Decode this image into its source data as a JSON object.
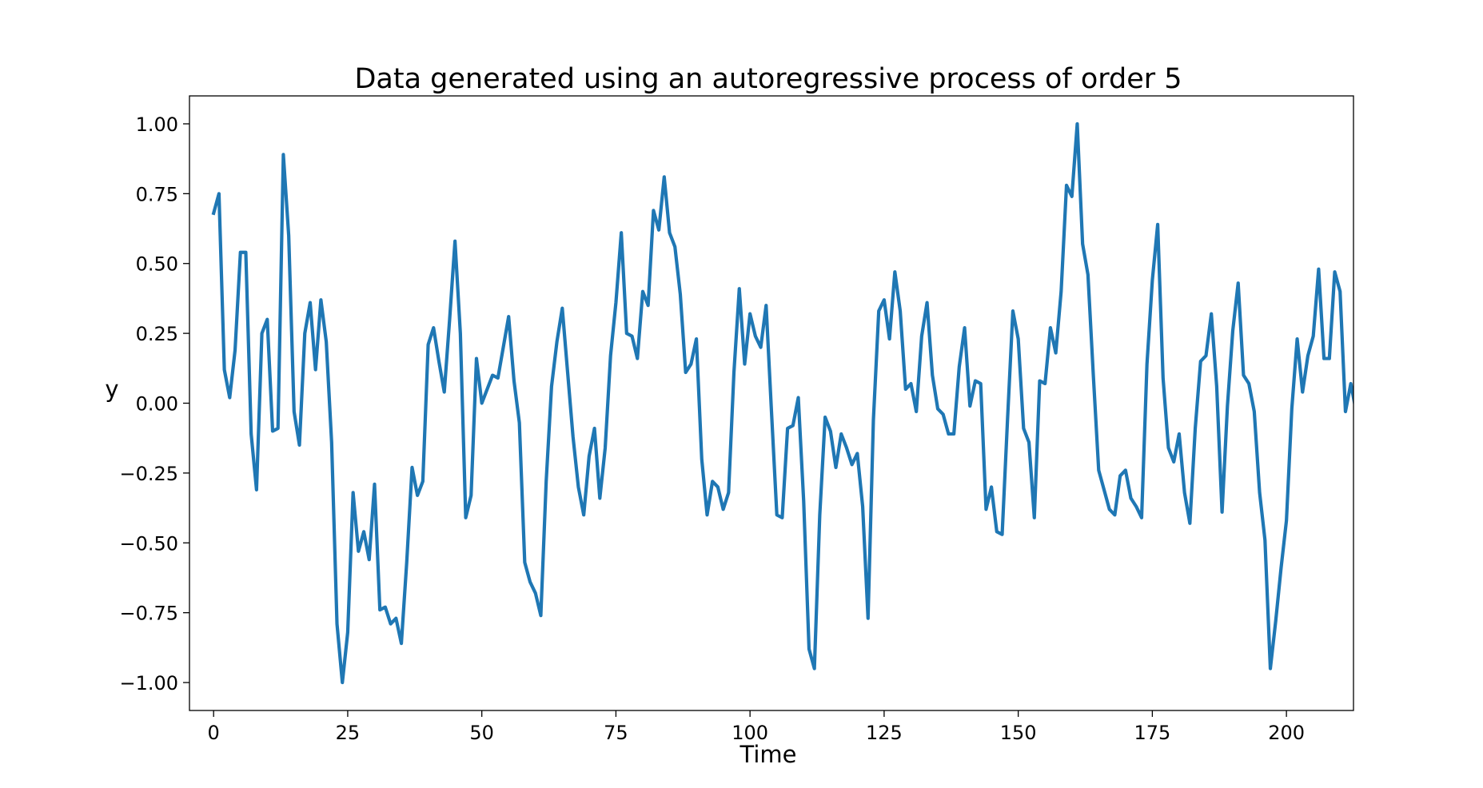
{
  "chart_data": {
    "type": "line",
    "title": "Data generated using an autoregressive process of order 5",
    "xlabel": "Time",
    "ylabel": "y",
    "xlim": [
      -4.5,
      212.5
    ],
    "ylim": [
      -1.1,
      1.1
    ],
    "xticks": [
      0,
      25,
      50,
      75,
      100,
      125,
      150,
      175,
      200
    ],
    "xtick_labels": [
      "0",
      "25",
      "50",
      "75",
      "100",
      "125",
      "150",
      "175",
      "200"
    ],
    "yticks": [
      1.0,
      0.75,
      0.5,
      0.25,
      0.0,
      -0.25,
      -0.5,
      -0.75,
      -1.0
    ],
    "ytick_labels": [
      "1.00",
      "0.75",
      "0.50",
      "0.25",
      "0.00",
      "−0.25",
      "−0.50",
      "−0.75",
      "−1.00"
    ],
    "grid": false,
    "line_color": "#1f77b4",
    "series": [
      {
        "x_start": 0,
        "x_step": 1,
        "values": [
          0.68,
          0.75,
          0.12,
          0.02,
          0.19,
          0.54,
          0.54,
          -0.11,
          -0.31,
          0.25,
          0.3,
          -0.1,
          -0.09,
          0.89,
          0.6,
          -0.03,
          -0.15,
          0.25,
          0.36,
          0.12,
          0.37,
          0.22,
          -0.14,
          -0.79,
          -1.0,
          -0.82,
          -0.32,
          -0.53,
          -0.46,
          -0.56,
          -0.29,
          -0.74,
          -0.73,
          -0.79,
          -0.77,
          -0.86,
          -0.57,
          -0.23,
          -0.33,
          -0.28,
          0.21,
          0.27,
          0.15,
          0.04,
          0.3,
          0.58,
          0.25,
          -0.41,
          -0.33,
          0.16,
          0.0,
          0.05,
          0.1,
          0.09,
          0.2,
          0.31,
          0.08,
          -0.07,
          -0.57,
          -0.64,
          -0.68,
          -0.76,
          -0.28,
          0.06,
          0.22,
          0.34,
          0.11,
          -0.12,
          -0.3,
          -0.4,
          -0.19,
          -0.09,
          -0.34,
          -0.16,
          0.17,
          0.36,
          0.61,
          0.25,
          0.24,
          0.16,
          0.4,
          0.35,
          0.69,
          0.62,
          0.81,
          0.61,
          0.56,
          0.39,
          0.11,
          0.14,
          0.23,
          -0.2,
          -0.4,
          -0.28,
          -0.3,
          -0.38,
          -0.32,
          0.11,
          0.41,
          0.14,
          0.32,
          0.24,
          0.2,
          0.35,
          -0.03,
          -0.4,
          -0.41,
          -0.09,
          -0.08,
          0.02,
          -0.35,
          -0.88,
          -0.95,
          -0.4,
          -0.05,
          -0.1,
          -0.23,
          -0.11,
          -0.16,
          -0.22,
          -0.18,
          -0.37,
          -0.77,
          -0.06,
          0.33,
          0.37,
          0.23,
          0.47,
          0.33,
          0.05,
          0.07,
          -0.03,
          0.24,
          0.36,
          0.1,
          -0.02,
          -0.04,
          -0.11,
          -0.11,
          0.13,
          0.27,
          -0.01,
          0.08,
          0.07,
          -0.38,
          -0.3,
          -0.46,
          -0.47,
          -0.06,
          0.33,
          0.23,
          -0.09,
          -0.14,
          -0.41,
          0.08,
          0.07,
          0.27,
          0.18,
          0.4,
          0.78,
          0.74,
          1.0,
          0.57,
          0.46,
          0.1,
          -0.24,
          -0.31,
          -0.38,
          -0.4,
          -0.26,
          -0.24,
          -0.34,
          -0.37,
          -0.41,
          0.14,
          0.44,
          0.64,
          0.09,
          -0.16,
          -0.21,
          -0.11,
          -0.32,
          -0.43,
          -0.09,
          0.15,
          0.17,
          0.32,
          0.06,
          -0.39,
          -0.01,
          0.26,
          0.43,
          0.1,
          0.07,
          -0.03,
          -0.32,
          -0.49,
          -0.95,
          -0.78,
          -0.59,
          -0.42,
          -0.02,
          0.23,
          0.04,
          0.17,
          0.24,
          0.48,
          0.16,
          0.16,
          0.47,
          0.4,
          -0.03,
          0.07,
          -0.03
        ]
      }
    ]
  }
}
